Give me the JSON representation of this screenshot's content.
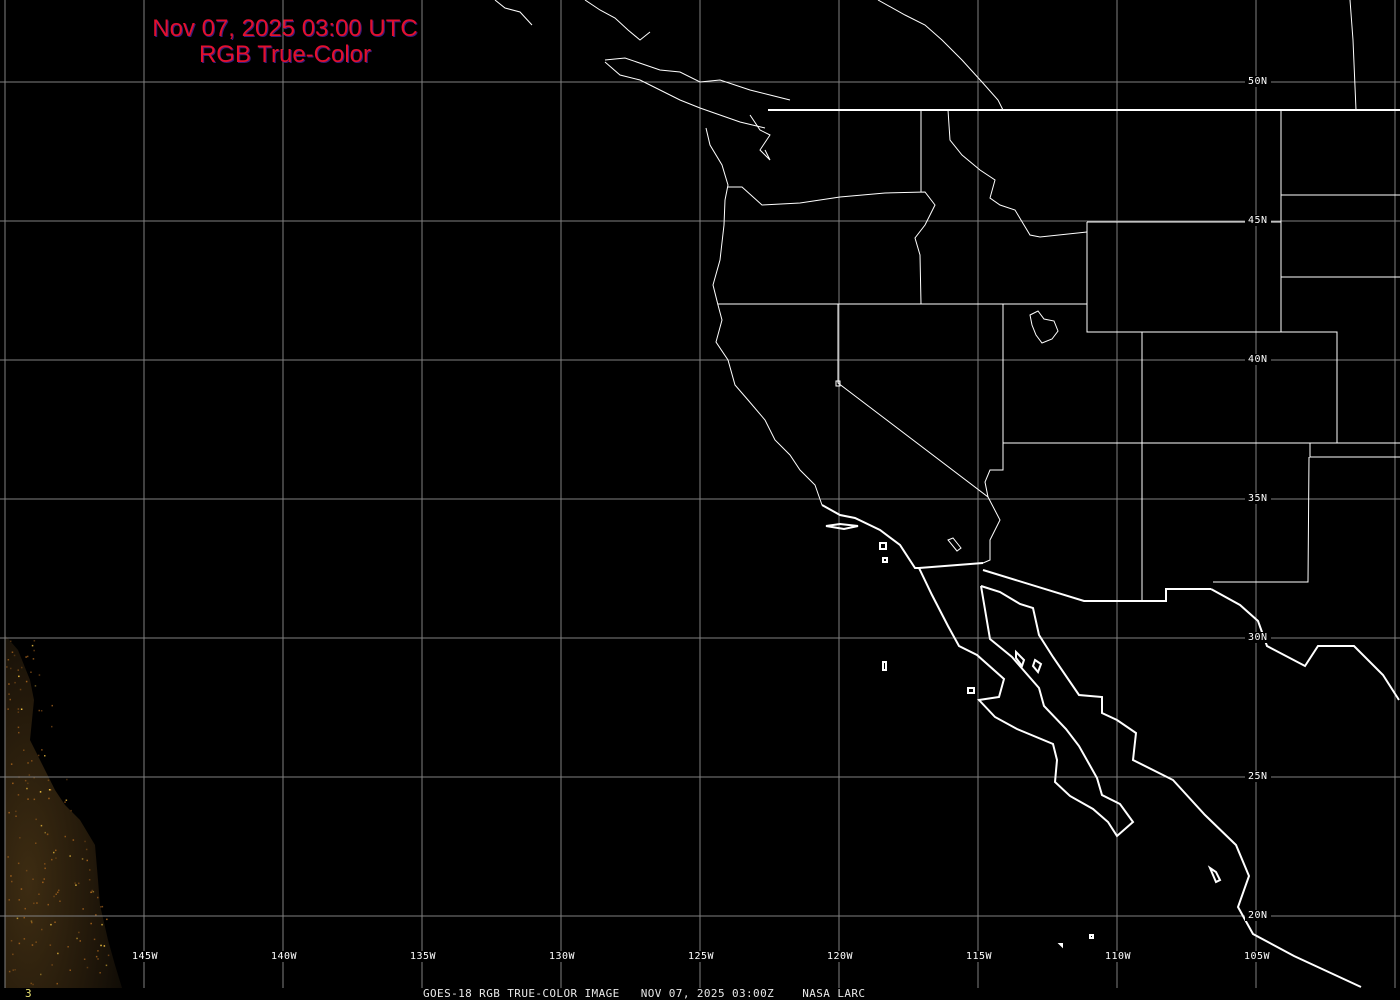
{
  "title": {
    "line1": "Nov 07, 2025 03:00 UTC",
    "line2": "RGB True-Color"
  },
  "grid": {
    "longitudes": [
      -150,
      -145,
      -140,
      -135,
      -130,
      -125,
      -120,
      -115,
      -110,
      -105,
      -100
    ],
    "latitudes": [
      50,
      45,
      40,
      35,
      30,
      25,
      20
    ],
    "lon_labels": [
      {
        "lon": -145,
        "text": "145W"
      },
      {
        "lon": -140,
        "text": "140W"
      },
      {
        "lon": -135,
        "text": "135W"
      },
      {
        "lon": -130,
        "text": "130W"
      },
      {
        "lon": -125,
        "text": "125W"
      },
      {
        "lon": -120,
        "text": "120W"
      },
      {
        "lon": -115,
        "text": "115W"
      },
      {
        "lon": -110,
        "text": "110W"
      },
      {
        "lon": -105,
        "text": "105W"
      }
    ],
    "lat_labels": [
      {
        "lat": 50,
        "text": "50N"
      },
      {
        "lat": 45,
        "text": "45N"
      },
      {
        "lat": 40,
        "text": "40N"
      },
      {
        "lat": 35,
        "text": "35N"
      },
      {
        "lat": 30,
        "text": "30N"
      },
      {
        "lat": 25,
        "text": "25N"
      },
      {
        "lat": 20,
        "text": "20N"
      }
    ]
  },
  "footer": {
    "frame_number": "3",
    "caption": "GOES-18 RGB TRUE-COLOR IMAGE   NOV 07, 2025 03:00Z    NASA LARC"
  },
  "colors": {
    "title": "#e3102e",
    "grid": "#808080",
    "boundaries": "#ffffff",
    "background": "#000000",
    "night_lights": "#3a2a12"
  }
}
